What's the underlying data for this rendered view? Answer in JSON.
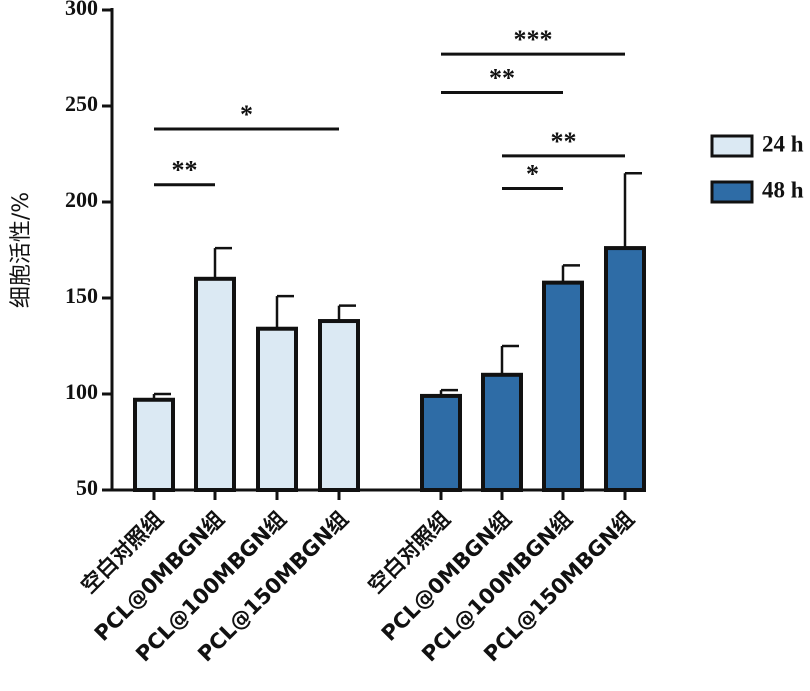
{
  "chart_data": {
    "type": "bar",
    "title": "",
    "xlabel": "",
    "ylabel": "细胞活性/%",
    "ylim": [
      50,
      300
    ],
    "yticks": [
      50,
      100,
      150,
      200,
      250,
      300
    ],
    "categories": [
      "空白对照组",
      "PCL@0MBGN组",
      "PCL@100MBGN组",
      "PCL@150MBGN组"
    ],
    "grid": false,
    "legend_position": "right",
    "series": [
      {
        "name": "24 h",
        "color": "#dbe9f3",
        "values": [
          97,
          160,
          134,
          138
        ],
        "errors": [
          3,
          16,
          17,
          8
        ]
      },
      {
        "name": "48 h",
        "color": "#2e6ca6",
        "values": [
          99,
          110,
          158,
          176
        ],
        "errors": [
          3,
          15,
          9,
          39
        ]
      }
    ],
    "significance": [
      {
        "series": 0,
        "from": 0,
        "to": 1,
        "y": 209,
        "label": "**"
      },
      {
        "series": 0,
        "from": 0,
        "to": 3,
        "y": 238,
        "label": "*"
      },
      {
        "series": 1,
        "from": 1,
        "to": 2,
        "y": 207,
        "label": "*"
      },
      {
        "series": 1,
        "from": 1,
        "to": 3,
        "y": 224,
        "label": "**"
      },
      {
        "series": 1,
        "from": 0,
        "to": 2,
        "y": 257,
        "label": "**"
      },
      {
        "series": 1,
        "from": 0,
        "to": 3,
        "y": 277,
        "label": "***"
      }
    ]
  }
}
